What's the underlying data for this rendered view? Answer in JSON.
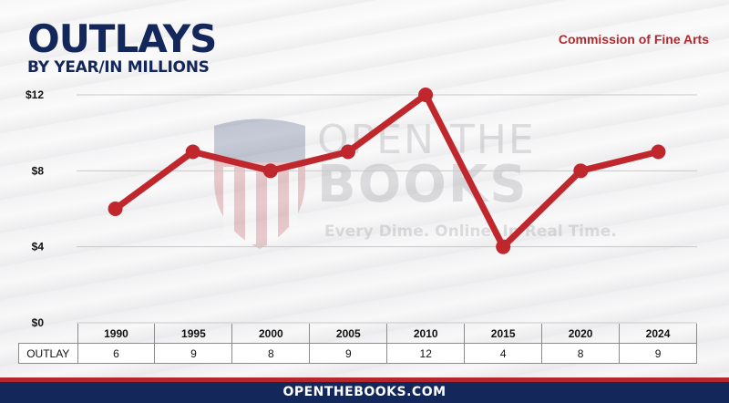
{
  "header": {
    "title": "OUTLAYS",
    "subtitle": "BY YEAR/IN MILLIONS",
    "agency": "Commission of Fine Arts"
  },
  "watermark": {
    "line1": "OPEN THE",
    "line2": "BOOKS",
    "tagline": "Every Dime. Online. In Real Time."
  },
  "footer": {
    "text": "OPENTHEBOOKS.COM"
  },
  "colors": {
    "navy": "#14275a",
    "red": "#b3282d",
    "line": "#c0272d"
  },
  "chart_data": {
    "type": "line",
    "title": "OUTLAYS",
    "subtitle": "BY YEAR/IN MILLIONS",
    "categories": [
      "1990",
      "1995",
      "2000",
      "2005",
      "2010",
      "2015",
      "2020",
      "2024"
    ],
    "series": [
      {
        "name": "OUTLAY",
        "values": [
          6,
          9,
          8,
          9,
          12,
          4,
          8,
          9
        ]
      }
    ],
    "ylim": [
      0,
      12
    ],
    "yticks": [
      0,
      4,
      8,
      12
    ],
    "ytick_labels": [
      "$0",
      "$4",
      "$8",
      "$12"
    ],
    "grid": true
  },
  "table": {
    "row_label": "OUTLAY",
    "years": [
      "1990",
      "1995",
      "2000",
      "2005",
      "2010",
      "2015",
      "2020",
      "2024"
    ],
    "values": [
      "6",
      "9",
      "8",
      "9",
      "12",
      "4",
      "8",
      "9"
    ]
  }
}
